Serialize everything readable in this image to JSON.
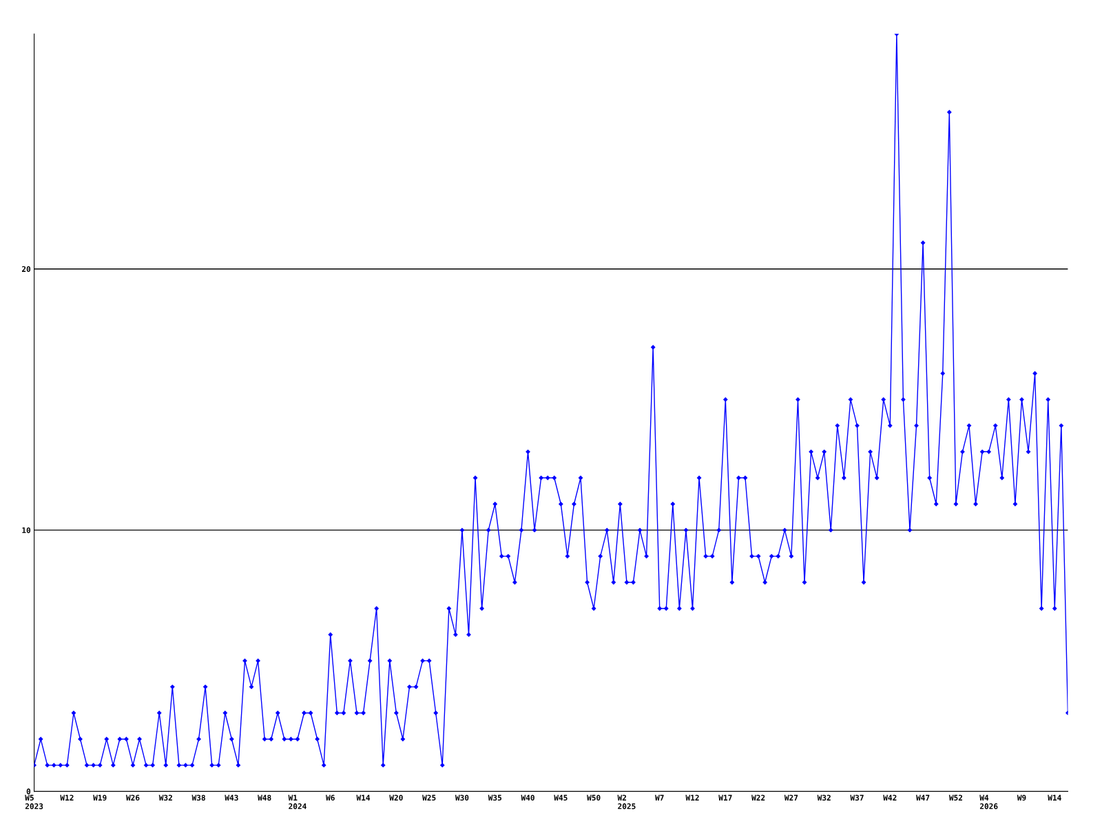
{
  "chart_data": {
    "type": "line",
    "color": "#0000ff",
    "marker": "diamond",
    "grid": "y",
    "ylim": [
      0,
      29
    ],
    "yticks": [
      0,
      10,
      20
    ],
    "categories": [
      "W5\n2023",
      null,
      null,
      null,
      null,
      "W12",
      null,
      null,
      null,
      null,
      "W19",
      null,
      null,
      null,
      null,
      "W26",
      null,
      null,
      null,
      null,
      "W32",
      null,
      null,
      null,
      null,
      "W38",
      null,
      null,
      null,
      null,
      "W43",
      null,
      null,
      null,
      null,
      "W48",
      null,
      null,
      null,
      null,
      "W1\n2024",
      null,
      null,
      null,
      null,
      "W6",
      null,
      null,
      null,
      null,
      "W14",
      null,
      null,
      null,
      null,
      "W20",
      null,
      null,
      null,
      null,
      "W25",
      null,
      null,
      null,
      null,
      "W30",
      null,
      null,
      null,
      null,
      "W35",
      null,
      null,
      null,
      null,
      "W40",
      null,
      null,
      null,
      null,
      "W45",
      null,
      null,
      null,
      null,
      "W50",
      null,
      null,
      null,
      null,
      "W2\n2025",
      null,
      null,
      null,
      null,
      "W7",
      null,
      null,
      null,
      null,
      "W12",
      null,
      null,
      null,
      null,
      "W17",
      null,
      null,
      null,
      null,
      "W22",
      null,
      null,
      null,
      null,
      "W27",
      null,
      null,
      null,
      null,
      "W32",
      null,
      null,
      null,
      null,
      "W37",
      null,
      null,
      null,
      null,
      "W42",
      null,
      null,
      null,
      null,
      "W47",
      null,
      null,
      null,
      null,
      "W52",
      null,
      null,
      null,
      null,
      "W4\n2026",
      null,
      null,
      null,
      null,
      "W9",
      null,
      null,
      null,
      null,
      "W14",
      null,
      null
    ],
    "values": [
      1,
      2,
      1,
      1,
      1,
      1,
      3,
      2,
      1,
      1,
      1,
      2,
      1,
      2,
      2,
      1,
      2,
      1,
      1,
      3,
      1,
      4,
      1,
      1,
      1,
      2,
      4,
      1,
      1,
      3,
      2,
      1,
      5,
      4,
      5,
      2,
      2,
      3,
      2,
      2,
      2,
      3,
      3,
      2,
      1,
      6,
      3,
      3,
      5,
      3,
      3,
      5,
      7,
      1,
      5,
      3,
      2,
      4,
      4,
      5,
      5,
      3,
      1,
      7,
      6,
      10,
      6,
      12,
      7,
      10,
      11,
      9,
      9,
      8,
      10,
      13,
      10,
      12,
      12,
      12,
      11,
      9,
      11,
      12,
      8,
      7,
      9,
      10,
      8,
      11,
      8,
      8,
      10,
      9,
      17,
      7,
      7,
      11,
      7,
      10,
      7,
      12,
      9,
      9,
      10,
      15,
      8,
      12,
      12,
      9,
      9,
      8,
      9,
      9,
      10,
      9,
      15,
      8,
      13,
      12,
      13,
      10,
      14,
      12,
      15,
      14,
      8,
      13,
      12,
      15,
      14,
      29,
      15,
      10,
      14,
      21,
      12,
      11,
      16,
      26,
      11,
      13,
      14,
      11,
      13,
      13,
      14,
      12,
      15,
      11,
      15,
      13,
      16,
      7,
      15,
      7,
      14,
      3
    ]
  }
}
